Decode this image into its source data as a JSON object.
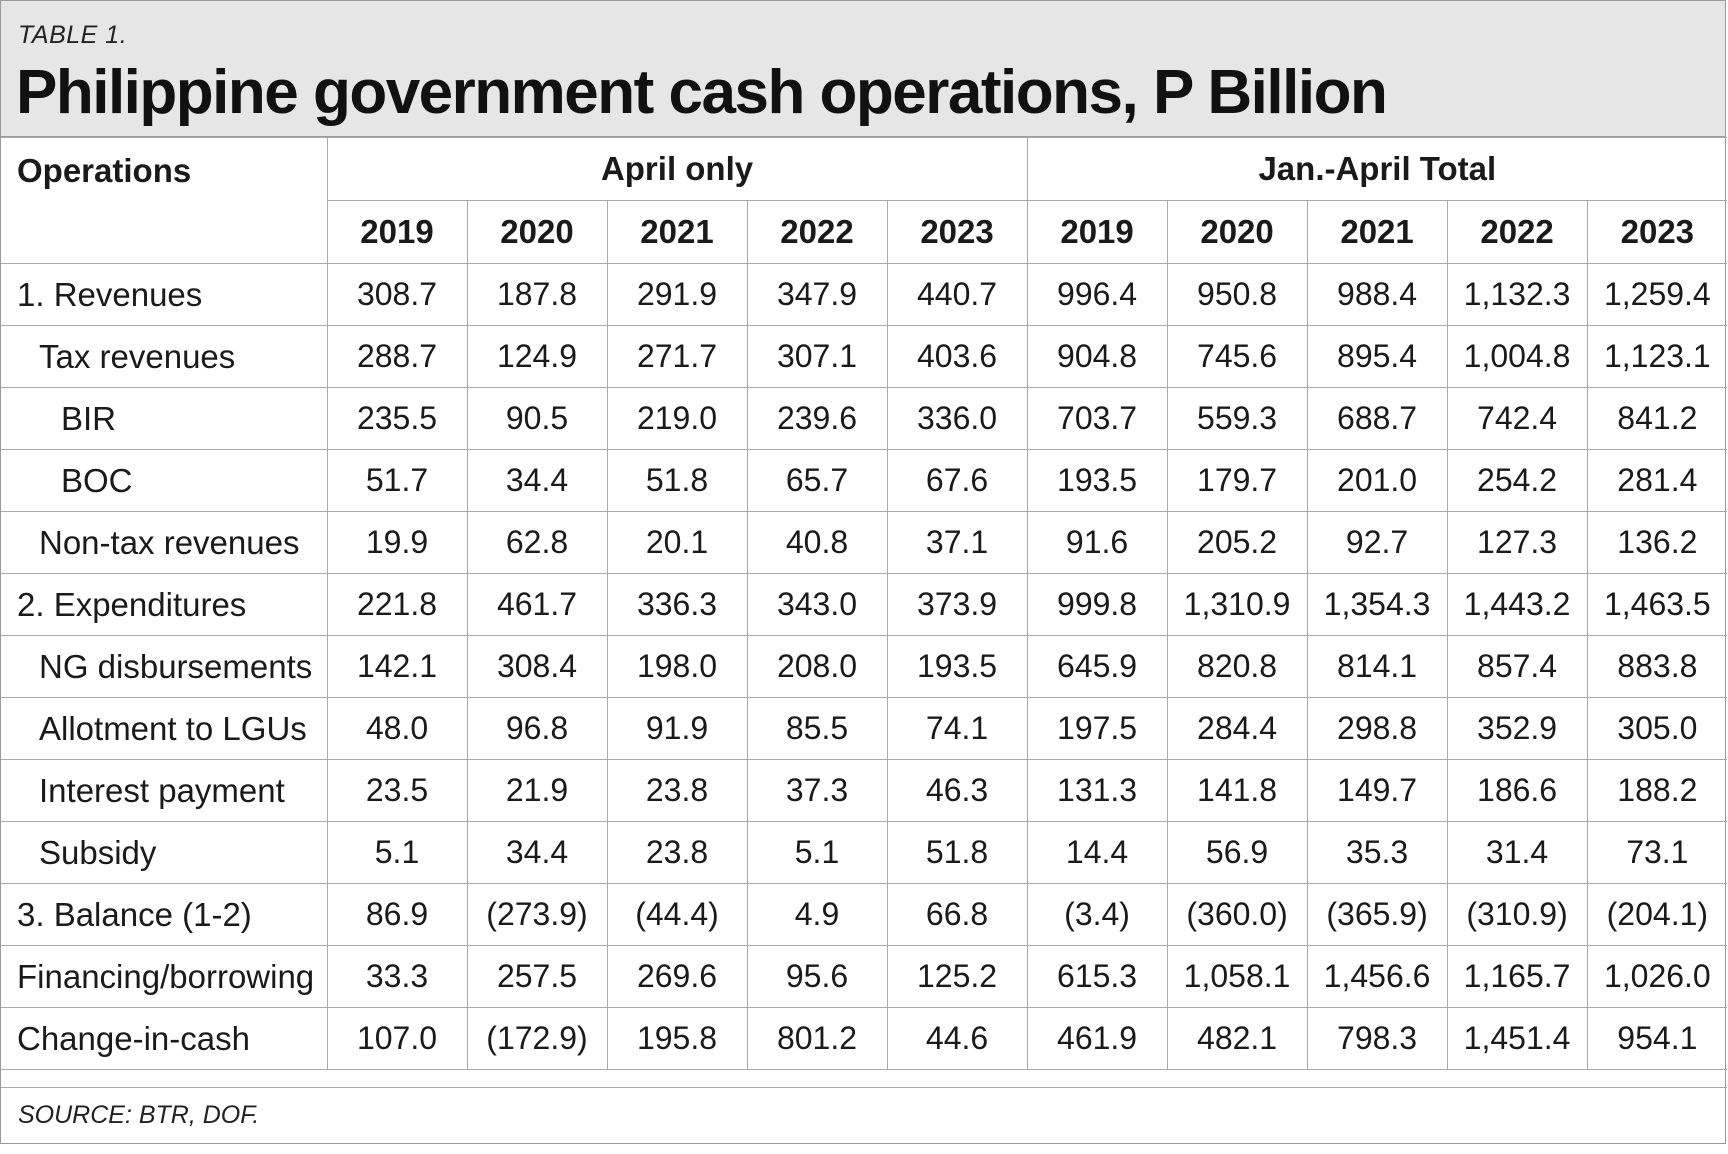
{
  "table_label": "TABLE 1.",
  "title": "Philippine government cash operations, P Billion",
  "header": {
    "operations": "Operations",
    "group_april": "April only",
    "group_total": "Jan.-April Total",
    "years": [
      "2019",
      "2020",
      "2021",
      "2022",
      "2023",
      "2019",
      "2020",
      "2021",
      "2022",
      "2023"
    ]
  },
  "rows": [
    {
      "label": "1. Revenues",
      "values": [
        "308.7",
        "187.8",
        "291.9",
        "347.9",
        "440.7",
        "996.4",
        "950.8",
        "988.4",
        "1,132.3",
        "1,259.4"
      ]
    },
    {
      "label": "Tax revenues",
      "values": [
        "288.7",
        "124.9",
        "271.7",
        "307.1",
        "403.6",
        "904.8",
        "745.6",
        "895.4",
        "1,004.8",
        "1,123.1"
      ]
    },
    {
      "label": "BIR",
      "values": [
        "235.5",
        "90.5",
        "219.0",
        "239.6",
        "336.0",
        "703.7",
        "559.3",
        "688.7",
        "742.4",
        "841.2"
      ]
    },
    {
      "label": "BOC",
      "values": [
        "51.7",
        "34.4",
        "51.8",
        "65.7",
        "67.6",
        "193.5",
        "179.7",
        "201.0",
        "254.2",
        "281.4"
      ]
    },
    {
      "label": "Non-tax revenues",
      "values": [
        "19.9",
        "62.8",
        "20.1",
        "40.8",
        "37.1",
        "91.6",
        "205.2",
        "92.7",
        "127.3",
        "136.2"
      ]
    },
    {
      "label": "2. Expenditures",
      "values": [
        "221.8",
        "461.7",
        "336.3",
        "343.0",
        "373.9",
        "999.8",
        "1,310.9",
        "1,354.3",
        "1,443.2",
        "1,463.5"
      ]
    },
    {
      "label": "NG disbursements",
      "values": [
        "142.1",
        "308.4",
        "198.0",
        "208.0",
        "193.5",
        "645.9",
        "820.8",
        "814.1",
        "857.4",
        "883.8"
      ]
    },
    {
      "label": "Allotment to LGUs",
      "values": [
        "48.0",
        "96.8",
        "91.9",
        "85.5",
        "74.1",
        "197.5",
        "284.4",
        "298.8",
        "352.9",
        "305.0"
      ]
    },
    {
      "label": "Interest payment",
      "values": [
        "23.5",
        "21.9",
        "23.8",
        "37.3",
        "46.3",
        "131.3",
        "141.8",
        "149.7",
        "186.6",
        "188.2"
      ]
    },
    {
      "label": "Subsidy",
      "values": [
        "5.1",
        "34.4",
        "23.8",
        "5.1",
        "51.8",
        "14.4",
        "56.9",
        "35.3",
        "31.4",
        "73.1"
      ]
    },
    {
      "label": "3. Balance (1-2)",
      "values": [
        "86.9",
        "(273.9)",
        "(44.4)",
        "4.9",
        "66.8",
        "(3.4)",
        "(360.0)",
        "(365.9)",
        "(310.9)",
        "(204.1)"
      ]
    },
    {
      "label": "Financing/borrowing",
      "values": [
        "33.3",
        "257.5",
        "269.6",
        "95.6",
        "125.2",
        "615.3",
        "1,058.1",
        "1,456.6",
        "1,165.7",
        "1,026.0"
      ]
    },
    {
      "label": "Change-in-cash",
      "values": [
        "107.0",
        "(172.9)",
        "195.8",
        "801.2",
        "44.6",
        "461.9",
        "482.1",
        "798.3",
        "1,451.4",
        "954.1"
      ]
    }
  ],
  "source": "SOURCE: BTR, DOF."
}
